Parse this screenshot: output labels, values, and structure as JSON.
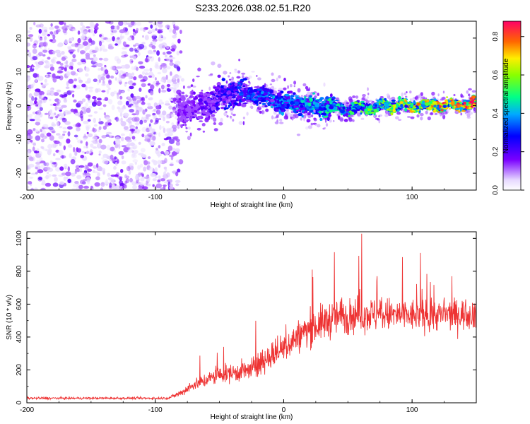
{
  "title": "S233.2026.038.02.51.R20",
  "chart_data": [
    {
      "type": "heatmap",
      "xlabel": "Height of straight line (km)",
      "ylabel": "Frequency (Hz)",
      "xlim": [
        -200,
        150
      ],
      "ylim": [
        -25,
        25
      ],
      "x_ticks": [
        "-200",
        "-100",
        "0",
        "100"
      ],
      "y_ticks": [
        "-20",
        "-10",
        "0",
        "10",
        "20"
      ],
      "colorbar": {
        "label": "Normalized spectral amplitude",
        "range": [
          0.0,
          0.88
        ],
        "ticks": [
          "0.0",
          "0.2",
          "0.4",
          "0.6",
          "0.8"
        ]
      },
      "noise_region_x": [
        -200,
        -80
      ],
      "signal_band": [
        {
          "x": -80,
          "y": -1,
          "amp": 0.15
        },
        {
          "x": -60,
          "y": 0,
          "amp": 0.2
        },
        {
          "x": -40,
          "y": 4,
          "amp": 0.3
        },
        {
          "x": -20,
          "y": 3,
          "amp": 0.35
        },
        {
          "x": 0,
          "y": 1,
          "amp": 0.4
        },
        {
          "x": 25,
          "y": 0,
          "amp": 0.45
        },
        {
          "x": 50,
          "y": -1,
          "amp": 0.5
        },
        {
          "x": 75,
          "y": 0,
          "amp": 0.6
        },
        {
          "x": 100,
          "y": 0,
          "amp": 0.7
        },
        {
          "x": 125,
          "y": 0,
          "amp": 0.8
        },
        {
          "x": 150,
          "y": 0.5,
          "amp": 0.85
        }
      ]
    },
    {
      "type": "line",
      "xlabel": "Height of straight line (km)",
      "ylabel": "SNR (10 * v/v)",
      "xlim": [
        -200,
        150
      ],
      "ylim": [
        0,
        1040
      ],
      "x_ticks": [
        "-200",
        "-100",
        "0",
        "100"
      ],
      "y_ticks": [
        "0",
        "200",
        "400",
        "600",
        "800",
        "1000"
      ],
      "series_color": "#ee3333",
      "envelope": [
        {
          "x": -200,
          "mean": 28,
          "spread": 12
        },
        {
          "x": -90,
          "mean": 28,
          "spread": 12
        },
        {
          "x": -80,
          "mean": 60,
          "spread": 40
        },
        {
          "x": -70,
          "mean": 110,
          "spread": 60
        },
        {
          "x": -50,
          "mean": 170,
          "spread": 90
        },
        {
          "x": -25,
          "mean": 200,
          "spread": 120
        },
        {
          "x": -20,
          "mean": 230,
          "spread": 130
        },
        {
          "x": 0,
          "mean": 340,
          "spread": 160
        },
        {
          "x": 20,
          "mean": 450,
          "spread": 180
        },
        {
          "x": 40,
          "mean": 520,
          "spread": 200
        },
        {
          "x": 60,
          "mean": 540,
          "spread": 190
        },
        {
          "x": 100,
          "mean": 530,
          "spread": 170
        },
        {
          "x": 150,
          "mean": 540,
          "spread": 160
        }
      ]
    }
  ]
}
